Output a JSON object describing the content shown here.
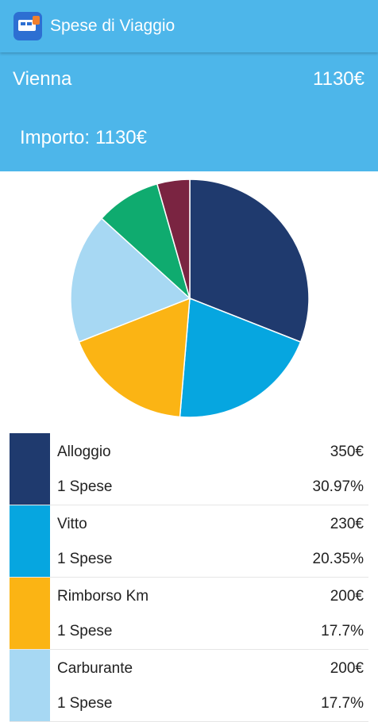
{
  "app": {
    "title": "Spese di Viaggio",
    "icon": "app-logo-icon"
  },
  "trip": {
    "name": "Vienna",
    "total": "1130€"
  },
  "summary": {
    "amount_label": "Importo:",
    "amount_value": "1130€"
  },
  "colors": {
    "appbar": "#4db6ea",
    "alloggio": "#1f3a6e",
    "vitto": "#06a6e0",
    "rimborso_km": "#fbb414",
    "carburante": "#a7d8f3",
    "green": "#0fab6f",
    "maroon": "#7a2441"
  },
  "chart_data": {
    "type": "pie",
    "slices": [
      {
        "label": "Alloggio",
        "value": 350,
        "percent": 30.97,
        "color": "#1f3a6e"
      },
      {
        "label": "Vitto",
        "value": 230,
        "percent": 20.35,
        "color": "#06a6e0"
      },
      {
        "label": "Rimborso Km",
        "value": 200,
        "percent": 17.7,
        "color": "#fbb414"
      },
      {
        "label": "Carburante",
        "value": 200,
        "percent": 17.7,
        "color": "#a7d8f3"
      },
      {
        "value": 100,
        "percent": 8.85,
        "color": "#0fab6f"
      },
      {
        "value": 50,
        "percent": 4.42,
        "color": "#7a2441"
      }
    ]
  },
  "legend": {
    "count_label": "Spese",
    "items": [
      {
        "name": "Alloggio",
        "amount": "350€",
        "count": "1",
        "percent": "30.97%",
        "color": "#1f3a6e"
      },
      {
        "name": "Vitto",
        "amount": "230€",
        "count": "1",
        "percent": "20.35%",
        "color": "#06a6e0"
      },
      {
        "name": "Rimborso Km",
        "amount": "200€",
        "count": "1",
        "percent": "17.7%",
        "color": "#fbb414"
      },
      {
        "name": "Carburante",
        "amount": "200€",
        "count": "1",
        "percent": "17.7%",
        "color": "#a7d8f3"
      }
    ]
  }
}
